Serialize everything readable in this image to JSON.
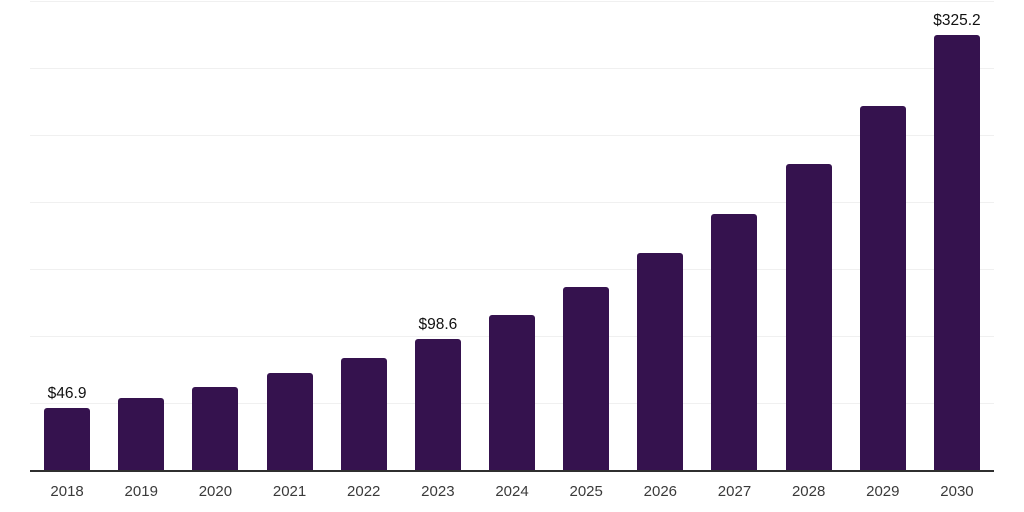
{
  "chart_data": {
    "type": "bar",
    "title": "",
    "xlabel": "",
    "ylabel": "",
    "categories": [
      "2018",
      "2019",
      "2020",
      "2021",
      "2022",
      "2023",
      "2024",
      "2025",
      "2026",
      "2027",
      "2028",
      "2029",
      "2030"
    ],
    "values": [
      46.9,
      54.2,
      62.9,
      72.9,
      84.6,
      98.6,
      116.3,
      137.2,
      162.5,
      191.8,
      228.9,
      272.7,
      325.2
    ],
    "data_labels": [
      "$46.9",
      null,
      null,
      null,
      null,
      "$98.6",
      null,
      null,
      null,
      null,
      null,
      null,
      "$325.2"
    ],
    "ylim": [
      0,
      350
    ],
    "gridline_step": 50,
    "grid": true,
    "legend": false,
    "bar_color": "#35124e",
    "gridline_color": "#f0f0f0",
    "axis_line_color": "#2f2f2f",
    "tick_label_color": "#3a3a3a",
    "data_label_color": "#111111"
  }
}
